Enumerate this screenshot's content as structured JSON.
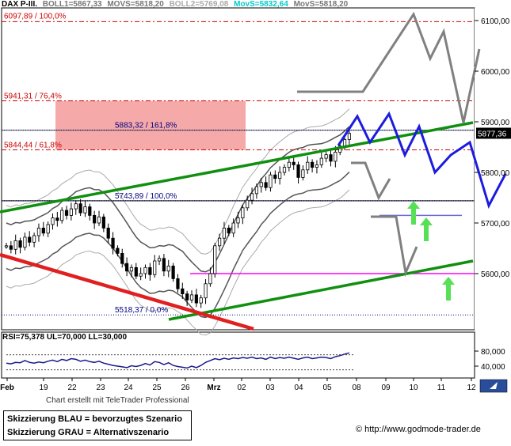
{
  "header": {
    "symbol": "DAX P-III.",
    "boll1": "BOLL1=5867,33",
    "movs1": "MOVS=5818,20",
    "boll2": "BOLL2=5769,08",
    "movs_cyan": "MovS=5832,64",
    "movs2": "MovS=5818,20",
    "colors": {
      "symbol": "#000000",
      "boll1": "#777777",
      "movs1": "#777777",
      "boll2": "#aaaaaa",
      "movs_cyan": "#00cccc",
      "movs2": "#777777"
    }
  },
  "rsi_header": "RSI=75,378 UL=70,000 LL=30,000",
  "credit": "Chart erstellt mit TeleTrader Professional",
  "legend": {
    "line1": "Skizzierung BLAU = bevorzugtes Szenario",
    "line2": "Skizzierung GRAU = Alternativszenario"
  },
  "url": "© http://www.godmode-trader.de",
  "chart_data": {
    "type": "line",
    "price_axis": {
      "ylim": [
        5505,
        6128
      ],
      "ticks": [
        6100,
        6000,
        5900,
        5800,
        5700,
        5600
      ],
      "tick_labels": [
        "6100,00",
        "6000,00",
        "5900,00",
        "5800,00",
        "5700,00",
        "5600,00"
      ]
    },
    "x_axis": {
      "tick_labels": [
        "Feb",
        "19",
        "22",
        "23",
        "24",
        "25",
        "26",
        "Mrz",
        "02",
        "03",
        "04",
        "05",
        "08",
        "09",
        "10",
        "11",
        "12"
      ]
    },
    "current_price": "5877,36",
    "fib_levels": [
      {
        "label": "6097,89 / 100,0%",
        "value": 6097.89,
        "color": "#cc0000"
      },
      {
        "label": "5941,31 / 76,4%",
        "value": 5941.31,
        "color": "#cc0000"
      },
      {
        "label": "5844,44 / 61,8%",
        "value": 5844.44,
        "color": "#cc0000"
      },
      {
        "label": "5883,32 / 161,8%",
        "value": 5883.32,
        "color": "#000080"
      },
      {
        "label": "5743,89 / 100,0%",
        "value": 5743.89,
        "color": "#000080"
      },
      {
        "label": "5518,37 / 0,0%",
        "value": 5518.37,
        "color": "#000080"
      }
    ],
    "candles": {
      "close": [
        5655,
        5648,
        5665,
        5652,
        5672,
        5662,
        5675,
        5690,
        5680,
        5697,
        5710,
        5705,
        5725,
        5715,
        5728,
        5738,
        5720,
        5732,
        5715,
        5700,
        5712,
        5690,
        5670,
        5650,
        5640,
        5620,
        5605,
        5612,
        5595,
        5600,
        5612,
        5598,
        5625,
        5630,
        5605,
        5615,
        5590,
        5570,
        5560,
        5548,
        5558,
        5542,
        5552,
        5580,
        5600,
        5655,
        5670,
        5690,
        5680,
        5700,
        5710,
        5730,
        5745,
        5758,
        5772,
        5780,
        5770,
        5795,
        5788,
        5800,
        5810,
        5820,
        5815,
        5790,
        5805,
        5820,
        5810,
        5815,
        5828,
        5835,
        5822,
        5840,
        5852,
        5865,
        5877
      ],
      "rsi": [
        48,
        46,
        50,
        49,
        55,
        50,
        48,
        51,
        49,
        53,
        56,
        52,
        58,
        55,
        60,
        58,
        53,
        56,
        52,
        50,
        53,
        48,
        45,
        42,
        40,
        38,
        36,
        41,
        39,
        42,
        47,
        43,
        52,
        50,
        44,
        49,
        42,
        39,
        37,
        35,
        40,
        36,
        42,
        50,
        55,
        60,
        57,
        61,
        58,
        62,
        60,
        63,
        61,
        64,
        60,
        62,
        58,
        64,
        60,
        63,
        61,
        64,
        61,
        58,
        62,
        64,
        60,
        62,
        64,
        63,
        60,
        65,
        68,
        72,
        75.378
      ]
    },
    "rsi": {
      "ylim": [
        24,
        94
      ],
      "ticks": [
        80,
        40
      ],
      "tick_labels": [
        "80,000",
        "40,000"
      ],
      "ul": 70,
      "ll": 30
    }
  }
}
